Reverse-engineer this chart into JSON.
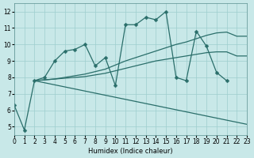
{
  "xlabel": "Humidex (Indice chaleur)",
  "bg_color": "#c8e8e8",
  "line_color": "#2a6e6a",
  "grid_color": "#9ecece",
  "xlim": [
    0,
    23
  ],
  "ylim": [
    4.5,
    12.5
  ],
  "series": [
    {
      "x": [
        0,
        1,
        2,
        3,
        4,
        5,
        6,
        7,
        8,
        9,
        10,
        11,
        12,
        13,
        14,
        15,
        16,
        17,
        18,
        19,
        20,
        21
      ],
      "y": [
        6.3,
        4.8,
        7.8,
        8.0,
        9.0,
        9.6,
        9.7,
        10.0,
        8.7,
        9.2,
        7.5,
        11.2,
        11.2,
        11.65,
        11.5,
        12.0,
        8.0,
        7.8,
        10.8,
        9.9,
        8.3,
        7.8
      ],
      "marker": true
    },
    {
      "x": [
        2,
        3,
        4,
        5,
        6,
        7,
        8,
        9,
        10,
        11,
        12,
        13,
        14,
        15,
        16,
        17,
        18,
        19,
        20,
        21,
        22,
        23
      ],
      "y": [
        7.8,
        7.85,
        7.9,
        8.0,
        8.1,
        8.2,
        8.35,
        8.5,
        8.75,
        9.0,
        9.2,
        9.4,
        9.6,
        9.8,
        10.0,
        10.15,
        10.35,
        10.55,
        10.7,
        10.75,
        10.5,
        10.5
      ],
      "marker": false
    },
    {
      "x": [
        2,
        3,
        4,
        5,
        6,
        7,
        8,
        9,
        10,
        11,
        12,
        13,
        14,
        15,
        16,
        17,
        18,
        19,
        20,
        21,
        22,
        23
      ],
      "y": [
        7.8,
        7.85,
        7.9,
        7.95,
        8.0,
        8.05,
        8.15,
        8.25,
        8.4,
        8.55,
        8.7,
        8.85,
        9.0,
        9.1,
        9.2,
        9.3,
        9.4,
        9.5,
        9.55,
        9.55,
        9.3,
        9.3
      ],
      "marker": false
    },
    {
      "x": [
        2,
        23
      ],
      "y": [
        7.8,
        5.15
      ],
      "marker": false
    }
  ]
}
